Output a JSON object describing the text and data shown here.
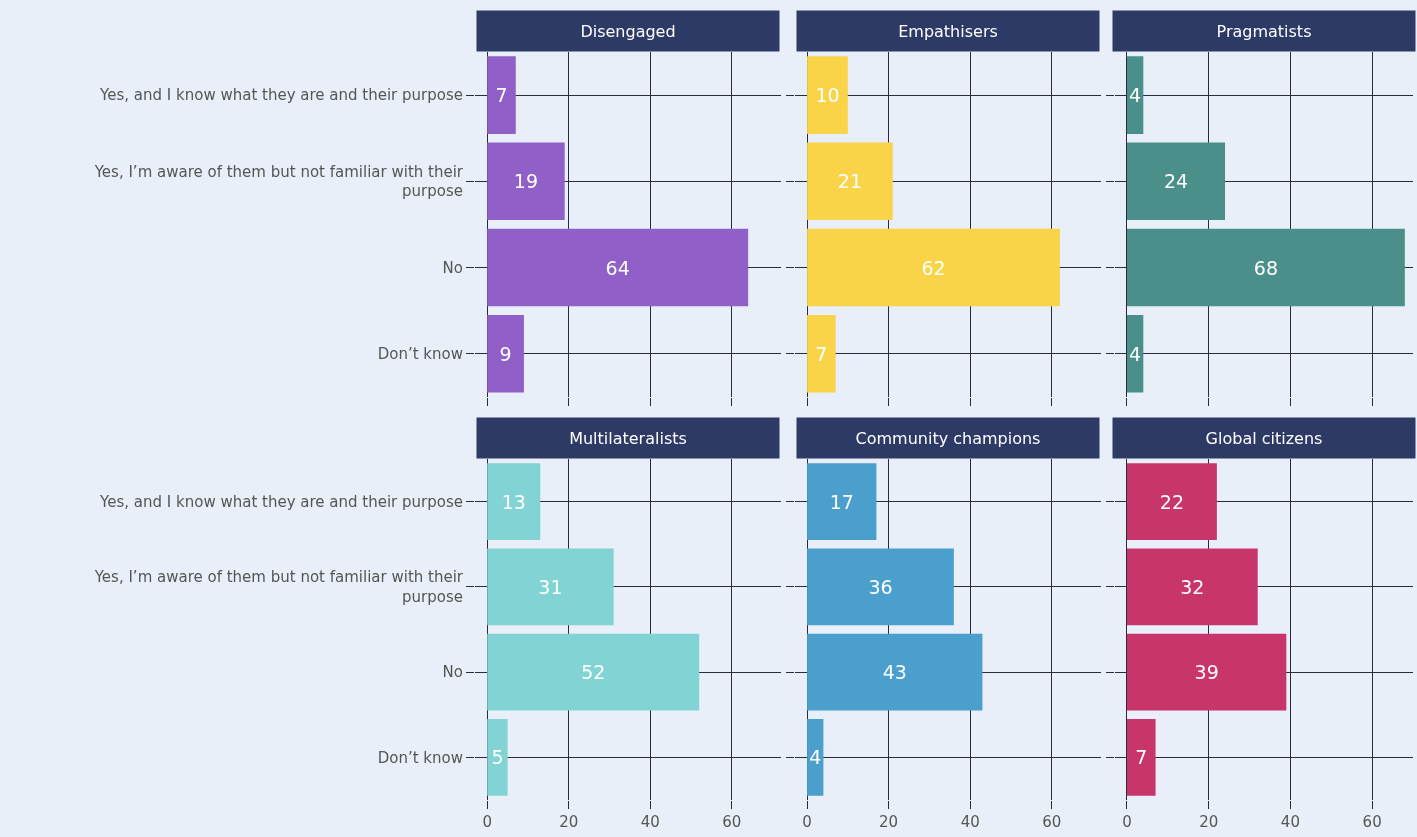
{
  "chart_data": [
    {
      "type": "bar",
      "orientation": "horizontal",
      "title": "Disengaged",
      "categories": [
        "Yes, and I know what they are and their purpose",
        "Yes, I’m aware of them but not familiar with their purpose",
        "No",
        "Don’t know"
      ],
      "values": [
        7,
        19,
        64,
        9
      ],
      "color": "#9060c8",
      "xlim": [
        -3,
        72
      ],
      "xticks": [
        0,
        20,
        40,
        60
      ],
      "grid": true,
      "data_labels": true,
      "tick_labels": "y"
    },
    {
      "type": "bar",
      "orientation": "horizontal",
      "title": "Empathisers",
      "categories": [
        null,
        null,
        null,
        null
      ],
      "values": [
        10,
        21,
        62,
        7
      ],
      "color": "#f9d448",
      "xlim": [
        -3,
        72
      ],
      "xticks": [
        0,
        20,
        40,
        60
      ],
      "grid": true,
      "data_labels": true,
      "tick_labels": false
    },
    {
      "type": "bar",
      "orientation": "horizontal",
      "title": "Pragmatists",
      "categories": [
        null,
        null,
        null,
        null
      ],
      "values": [
        4,
        24,
        68,
        4
      ],
      "color": "#4a8f8a",
      "xlim": [
        -3,
        70
      ],
      "xticks": [
        0,
        20,
        40,
        60
      ],
      "grid": true,
      "data_labels": true,
      "tick_labels": false
    },
    {
      "type": "bar",
      "orientation": "horizontal",
      "title": "Multilateralists",
      "categories": [
        "Yes, and I know what they are and their purpose",
        "Yes, I’m aware of them but not familiar with their purpose",
        "No",
        "Don’t know"
      ],
      "values": [
        13,
        31,
        52,
        5
      ],
      "color": "#82d3d3",
      "xlim": [
        -3,
        72
      ],
      "xticks": [
        0,
        20,
        40,
        60
      ],
      "grid": true,
      "data_labels": true
    },
    {
      "type": "bar",
      "orientation": "horizontal",
      "title": "Community champions",
      "categories": [
        null,
        null,
        null,
        null
      ],
      "values": [
        17,
        36,
        43,
        4
      ],
      "color": "#4b9fcd",
      "xlim": [
        -3,
        72
      ],
      "xticks": [
        0,
        20,
        40,
        60
      ],
      "grid": true,
      "data_labels": true,
      "tick_labels": "x"
    },
    {
      "type": "bar",
      "orientation": "horizontal",
      "title": "Global citizens",
      "categories": [
        null,
        null,
        null,
        null
      ],
      "values": [
        22,
        32,
        39,
        7
      ],
      "color": "#c8356b",
      "xlim": [
        -3,
        70
      ],
      "xticks": [
        0,
        20,
        40,
        60
      ],
      "grid": true,
      "data_labels": true,
      "tick_labels": "x"
    }
  ]
}
